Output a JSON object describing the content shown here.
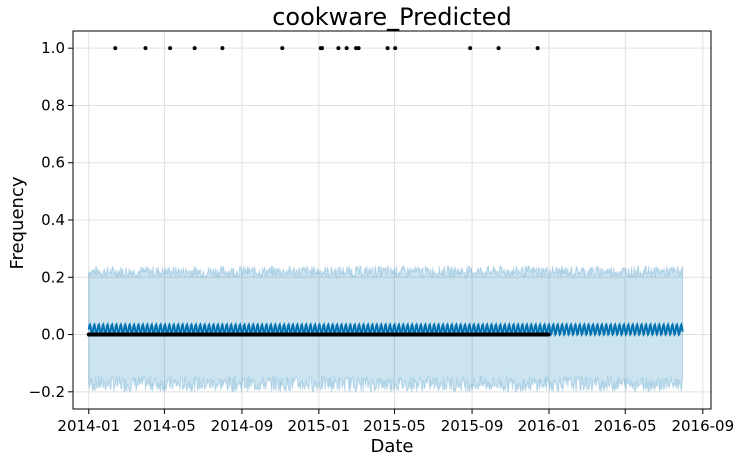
{
  "chart_data": {
    "type": "line",
    "title": "cookware_Predicted",
    "xlabel": "Date",
    "ylabel": "Frequency",
    "xlim": [
      "2013-12-07",
      "2016-09-14"
    ],
    "ylim": [
      -0.26,
      1.06
    ],
    "x_ticks": [
      "2014-01",
      "2014-05",
      "2014-09",
      "2015-01",
      "2015-05",
      "2015-09",
      "2016-01",
      "2016-05",
      "2016-09"
    ],
    "y_ticks": [
      -0.2,
      0.0,
      0.2,
      0.4,
      0.6,
      0.8,
      1.0
    ],
    "grid": true,
    "forecast": {
      "start": "2014-01-01",
      "end": "2016-07-31",
      "yhat_range": [
        0.0,
        0.035
      ],
      "seasonality": "weekly",
      "uncertainty_lower_range": [
        -0.2,
        -0.145
      ],
      "uncertainty_upper_range": [
        0.2,
        0.24
      ],
      "line_color": "#0072B2",
      "band_color": "#0072B2"
    },
    "observed": {
      "color": "#000000",
      "zero_range": [
        "2014-01-01",
        "2015-12-31"
      ],
      "zero_value": 0,
      "ones": [
        "2014-02-12",
        "2014-04-01",
        "2014-05-10",
        "2014-06-18",
        "2014-08-01",
        "2014-11-04",
        "2015-01-04",
        "2015-01-06",
        "2015-02-01",
        "2015-02-14",
        "2015-03-01",
        "2015-03-05",
        "2015-04-20",
        "2015-05-02",
        "2015-08-29",
        "2015-10-13",
        "2015-12-14"
      ]
    }
  }
}
